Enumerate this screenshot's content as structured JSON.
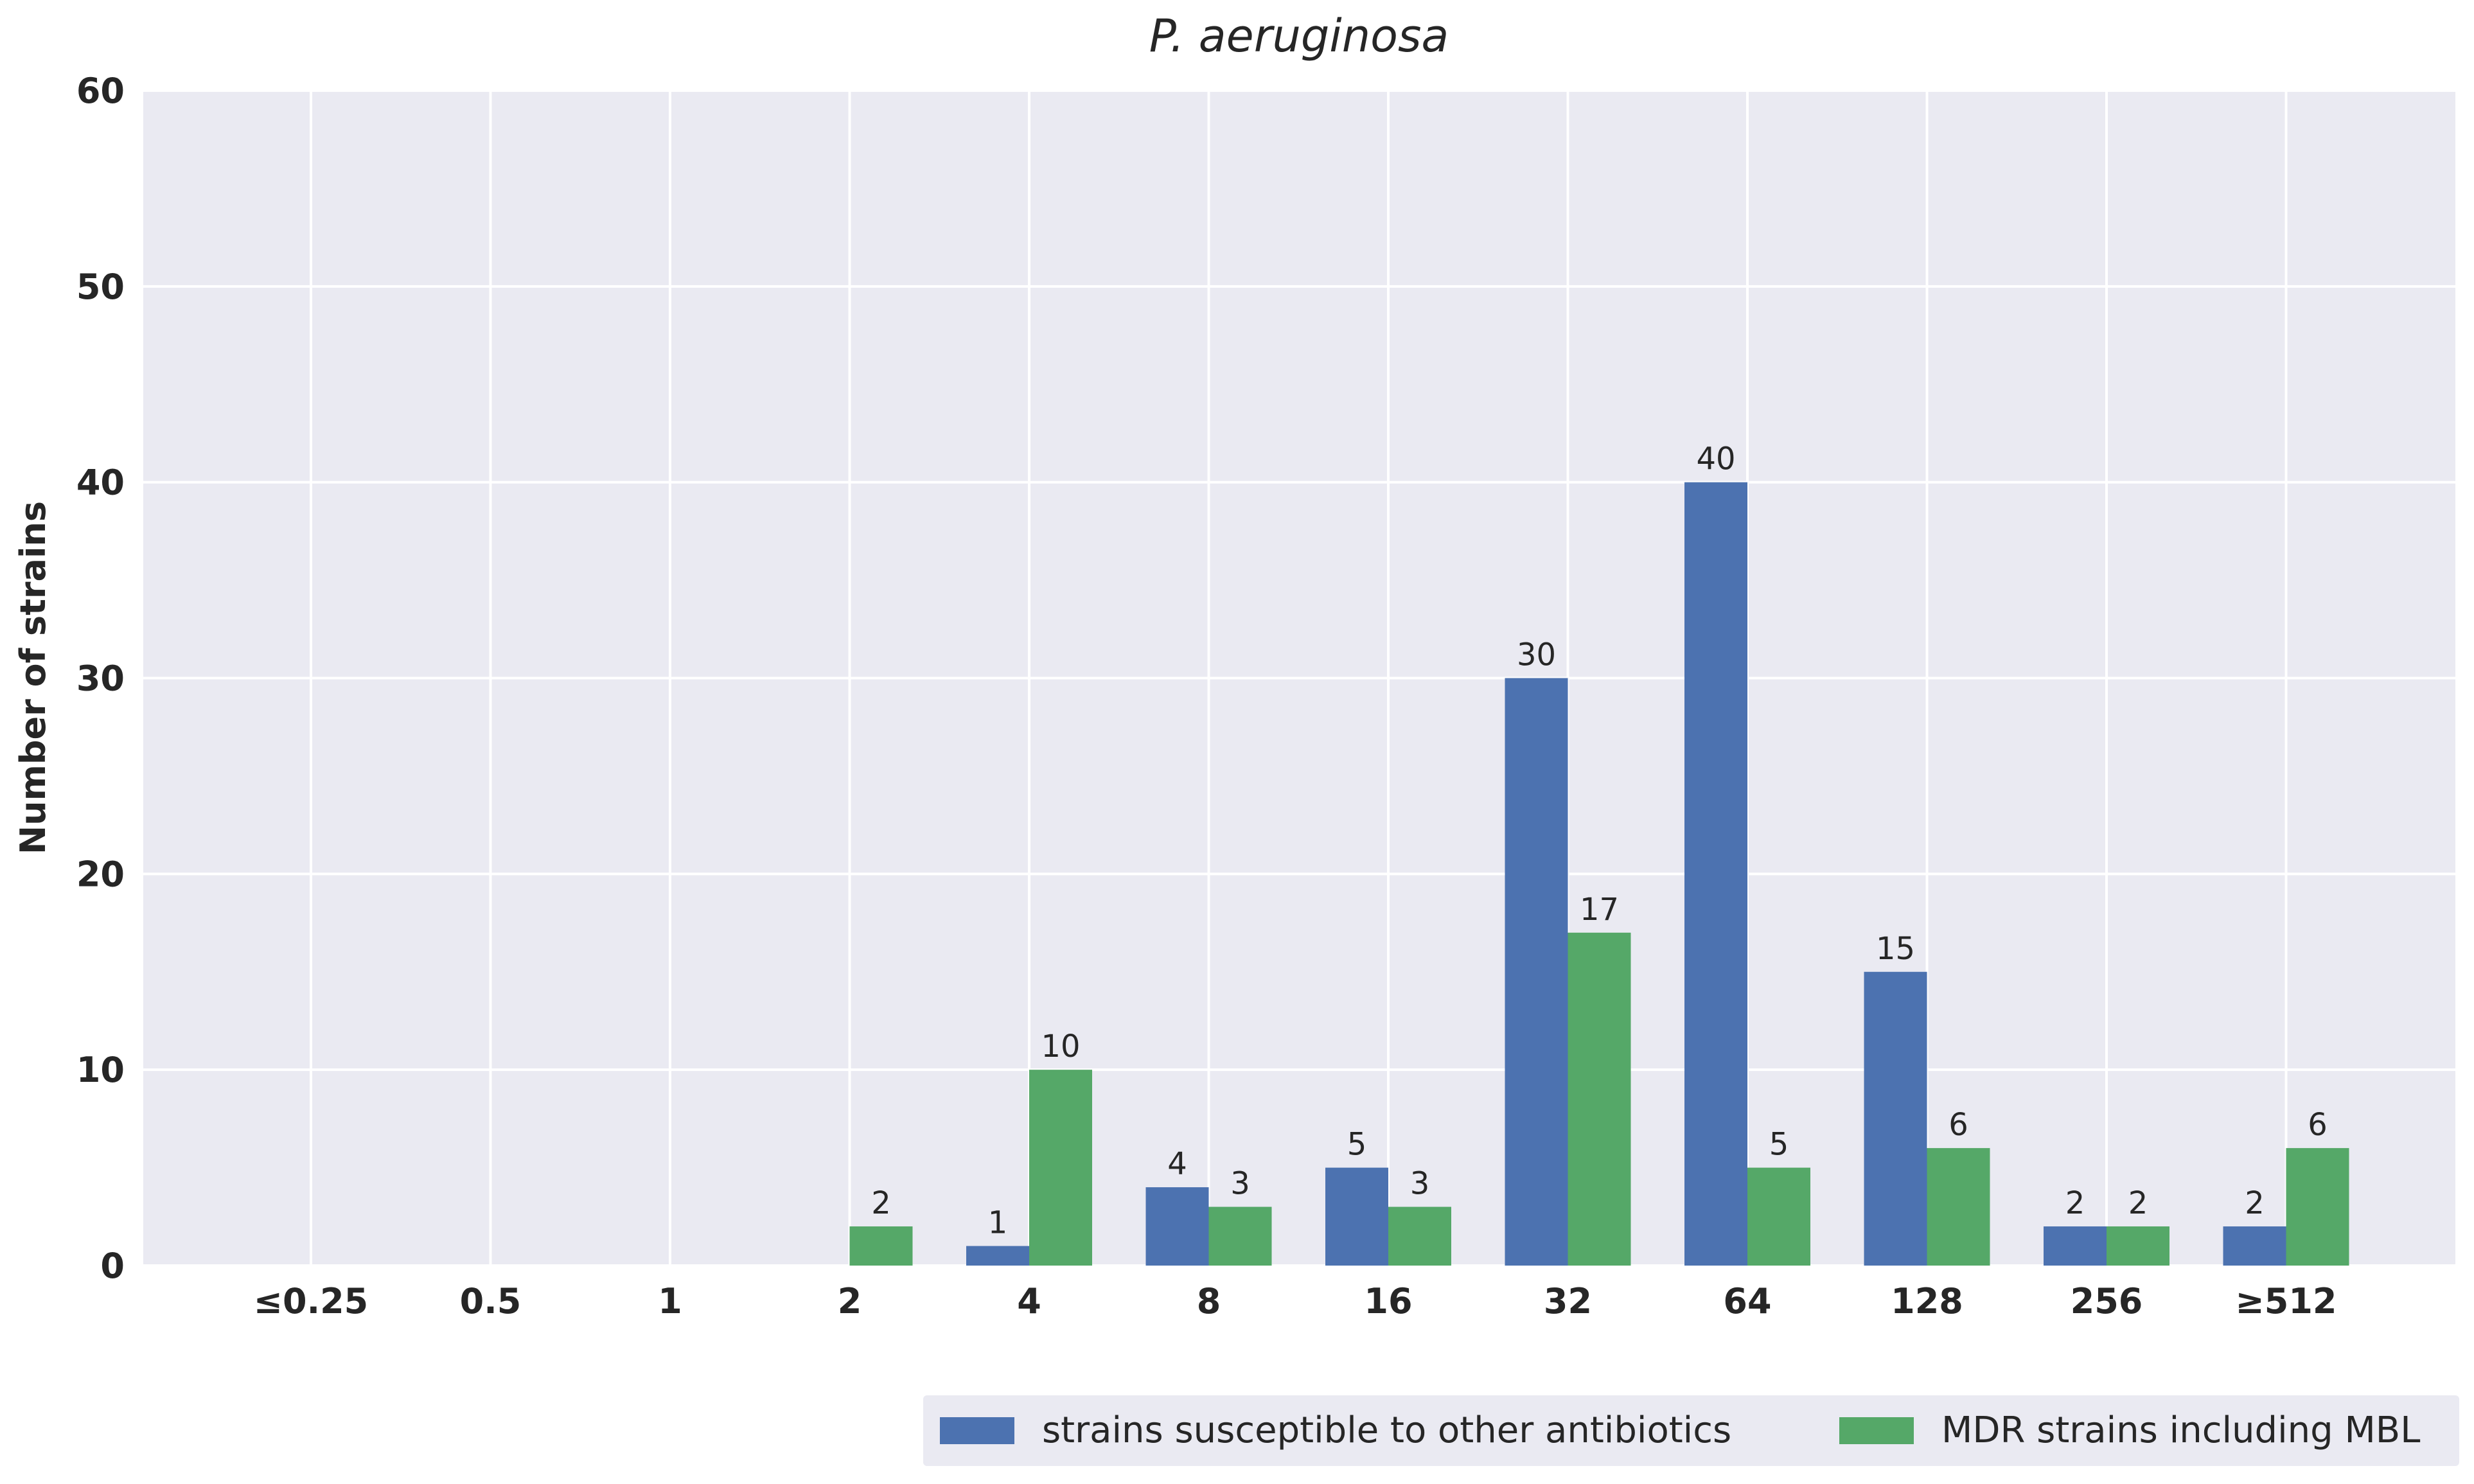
{
  "chart_data": {
    "type": "bar",
    "title": "P. aeruginosa",
    "xlabel": "",
    "ylabel": "Number of strains",
    "ylim": [
      0,
      60
    ],
    "yticks": [
      0,
      10,
      20,
      30,
      40,
      50,
      60
    ],
    "grid": true,
    "categories": [
      "≤0.25",
      "0.5",
      "1",
      "2",
      "4",
      "8",
      "16",
      "32",
      "64",
      "128",
      "256",
      "≥512"
    ],
    "series": [
      {
        "name": "strains susceptible to other antibiotics",
        "color": "#4c72b0",
        "values": [
          0,
          0,
          0,
          0,
          1,
          4,
          5,
          30,
          40,
          15,
          2,
          2
        ]
      },
      {
        "name": "MDR strains including MBL",
        "color": "#55a868",
        "values": [
          0,
          0,
          0,
          2,
          10,
          3,
          3,
          17,
          5,
          6,
          2,
          6
        ]
      }
    ],
    "legend_position": "bottom-right"
  },
  "colors": {
    "plot_background": "#eaeaf2",
    "grid": "#ffffff",
    "text": "#262626"
  }
}
